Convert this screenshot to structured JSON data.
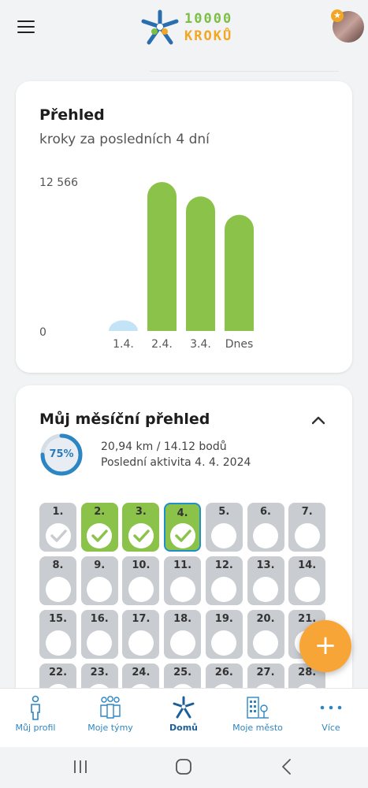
{
  "header": {
    "logo_line1": "10000",
    "logo_line2": "KROKŮ"
  },
  "overview": {
    "title": "Přehled",
    "subtitle": "kroky za posledních 4 dní"
  },
  "chart_data": {
    "type": "bar",
    "categories": [
      "1.4.",
      "2.4.",
      "3.4.",
      "Dnes"
    ],
    "values": [
      900,
      12566,
      11350,
      9800
    ],
    "ylim": [
      0,
      12566
    ],
    "ytick_labels": [
      "12 566",
      "0"
    ],
    "colors": {
      "low": "#c3e3f7",
      "normal": "#8bc34a"
    }
  },
  "monthly": {
    "title": "Můj měsíční přehled",
    "percent": 75,
    "percent_label": "75%",
    "distance_points": "20,94 km / 14.12 bodů",
    "last_activity": "Poslední aktivita 4. 4. 2024",
    "days": [
      {
        "label": "1.",
        "state": "past"
      },
      {
        "label": "2.",
        "state": "done"
      },
      {
        "label": "3.",
        "state": "done"
      },
      {
        "label": "4.",
        "state": "today"
      },
      {
        "label": "5.",
        "state": "empty"
      },
      {
        "label": "6.",
        "state": "empty"
      },
      {
        "label": "7.",
        "state": "empty"
      },
      {
        "label": "8.",
        "state": "empty"
      },
      {
        "label": "9.",
        "state": "empty"
      },
      {
        "label": "10.",
        "state": "empty"
      },
      {
        "label": "11.",
        "state": "empty"
      },
      {
        "label": "12.",
        "state": "empty"
      },
      {
        "label": "13.",
        "state": "empty"
      },
      {
        "label": "14.",
        "state": "empty"
      },
      {
        "label": "15.",
        "state": "empty"
      },
      {
        "label": "16.",
        "state": "empty"
      },
      {
        "label": "17.",
        "state": "empty"
      },
      {
        "label": "18.",
        "state": "empty"
      },
      {
        "label": "19.",
        "state": "empty"
      },
      {
        "label": "20.",
        "state": "empty"
      },
      {
        "label": "21.",
        "state": "empty"
      },
      {
        "label": "22.",
        "state": "empty"
      },
      {
        "label": "23.",
        "state": "empty"
      },
      {
        "label": "24.",
        "state": "empty"
      },
      {
        "label": "25.",
        "state": "empty"
      },
      {
        "label": "26.",
        "state": "empty"
      },
      {
        "label": "27.",
        "state": "empty"
      },
      {
        "label": "28.",
        "state": "empty"
      }
    ]
  },
  "fab": {
    "icon": "plus-icon",
    "symbol": "+"
  },
  "nav": {
    "items": [
      {
        "label": "Můj profil",
        "icon": "person-icon"
      },
      {
        "label": "Moje týmy",
        "icon": "team-icon"
      },
      {
        "label": "Domů",
        "icon": "home-logo-icon"
      },
      {
        "label": "Moje město",
        "icon": "city-icon"
      },
      {
        "label": "Více",
        "icon": "more-icon"
      }
    ]
  },
  "colors": {
    "accent": "#2d86c4",
    "green": "#8bc34a",
    "orange": "#f7a536",
    "gray_tile": "#c9ccd0"
  }
}
